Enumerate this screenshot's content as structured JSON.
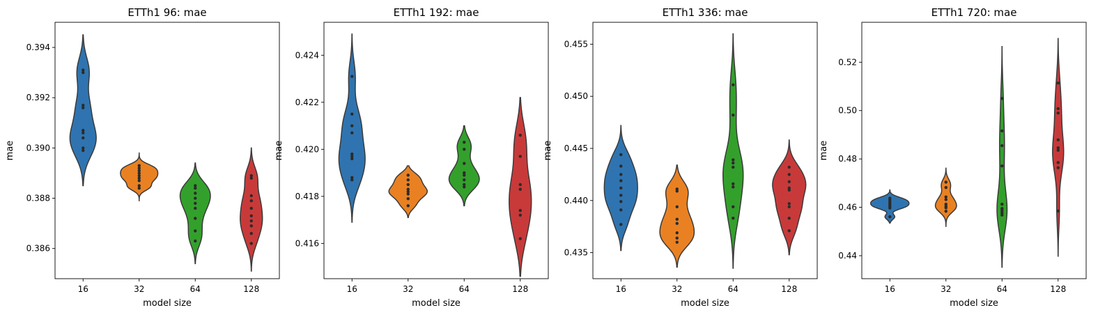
{
  "colors": {
    "16": "#2f74b0",
    "32": "#e98123",
    "64": "#33a02c",
    "128": "#c83a3a",
    "outline": "#3a3a3a",
    "dots": "#2b2b2b"
  },
  "chart_data": [
    {
      "type": "violin",
      "title": "ETTh1 96: mae",
      "xlabel": "model size",
      "ylabel": "mae",
      "categories": [
        "16",
        "32",
        "64",
        "128"
      ],
      "ylim": [
        0.3848,
        0.395
      ],
      "yticks": [
        0.386,
        0.388,
        0.39,
        0.392,
        0.394
      ],
      "ytick_labels": [
        "0.386",
        "0.388",
        "0.390",
        "0.392",
        "0.394"
      ],
      "series": [
        {
          "name": "16",
          "points": [
            0.3899,
            0.39,
            0.3904,
            0.3906,
            0.3907,
            0.3916,
            0.3917,
            0.393,
            0.3931
          ],
          "range": [
            0.3885,
            0.3945
          ],
          "width": 0.26
        },
        {
          "name": "32",
          "points": [
            0.3884,
            0.3885,
            0.3887,
            0.3888,
            0.3889,
            0.389,
            0.3891,
            0.3892,
            0.3893
          ],
          "range": [
            0.3879,
            0.3898
          ],
          "width": 0.37
        },
        {
          "name": "64",
          "points": [
            0.3863,
            0.3867,
            0.3872,
            0.3876,
            0.3878,
            0.388,
            0.3882,
            0.3884,
            0.3885
          ],
          "range": [
            0.3854,
            0.3894
          ],
          "width": 0.3
        },
        {
          "name": "128",
          "points": [
            0.3862,
            0.3866,
            0.3869,
            0.3871,
            0.3873,
            0.3876,
            0.3879,
            0.3881,
            0.3888,
            0.3889
          ],
          "range": [
            0.3851,
            0.39
          ],
          "width": 0.22
        }
      ]
    },
    {
      "type": "violin",
      "title": "ETTh1 192: mae",
      "xlabel": "model size",
      "ylabel": "mae",
      "categories": [
        "16",
        "32",
        "64",
        "128"
      ],
      "ylim": [
        0.4145,
        0.4254
      ],
      "yticks": [
        0.416,
        0.418,
        0.42,
        0.422,
        0.424
      ],
      "ytick_labels": [
        "0.416",
        "0.418",
        "0.420",
        "0.422",
        "0.424"
      ],
      "series": [
        {
          "name": "16",
          "points": [
            0.4187,
            0.4188,
            0.4196,
            0.4197,
            0.4198,
            0.4207,
            0.421,
            0.4215,
            0.4231
          ],
          "range": [
            0.4169,
            0.4249
          ],
          "width": 0.26
        },
        {
          "name": "32",
          "points": [
            0.4176,
            0.4179,
            0.4181,
            0.4182,
            0.4183,
            0.4185,
            0.4187,
            0.4189
          ],
          "range": [
            0.4171,
            0.4193
          ],
          "width": 0.38
        },
        {
          "name": "64",
          "points": [
            0.4184,
            0.4185,
            0.4187,
            0.4189,
            0.419,
            0.4194,
            0.42,
            0.4203
          ],
          "range": [
            0.4176,
            0.421
          ],
          "width": 0.3
        },
        {
          "name": "128",
          "points": [
            0.4162,
            0.4172,
            0.4174,
            0.4183,
            0.4185,
            0.4197,
            0.4206
          ],
          "range": [
            0.4146,
            0.4222
          ],
          "width": 0.22
        }
      ]
    },
    {
      "type": "violin",
      "title": "ETTh1 336: mae",
      "xlabel": "model size",
      "ylabel": "mae",
      "categories": [
        "16",
        "32",
        "64",
        "128"
      ],
      "ylim": [
        0.4325,
        0.4571
      ],
      "yticks": [
        0.435,
        0.44,
        0.445,
        0.45,
        0.455
      ],
      "ytick_labels": [
        "0.435",
        "0.440",
        "0.445",
        "0.450",
        "0.455"
      ],
      "series": [
        {
          "name": "16",
          "points": [
            0.4377,
            0.4391,
            0.4399,
            0.4405,
            0.4412,
            0.4419,
            0.4425,
            0.4433,
            0.4444
          ],
          "range": [
            0.4352,
            0.4472
          ],
          "width": 0.33
        },
        {
          "name": "32",
          "points": [
            0.436,
            0.4364,
            0.4369,
            0.4378,
            0.4382,
            0.4394,
            0.4409,
            0.4411
          ],
          "range": [
            0.4336,
            0.4434
          ],
          "width": 0.34
        },
        {
          "name": "64",
          "points": [
            0.4383,
            0.4394,
            0.4413,
            0.4416,
            0.4432,
            0.4436,
            0.4439,
            0.4482,
            0.4511
          ],
          "range": [
            0.4335,
            0.456
          ],
          "width": 0.2
        },
        {
          "name": "128",
          "points": [
            0.4371,
            0.4383,
            0.4394,
            0.4397,
            0.441,
            0.4412,
            0.4418,
            0.4425,
            0.4432
          ],
          "range": [
            0.4348,
            0.4458
          ],
          "width": 0.33
        }
      ]
    },
    {
      "type": "violin",
      "title": "ETTh1 720: mae",
      "xlabel": "model size",
      "ylabel": "mae",
      "categories": [
        "16",
        "32",
        "64",
        "128"
      ],
      "ylim": [
        0.4305,
        0.5365
      ],
      "yticks": [
        0.44,
        0.46,
        0.48,
        0.5,
        0.52
      ],
      "ytick_labels": [
        "0.44",
        "0.46",
        "0.48",
        "0.50",
        "0.52"
      ],
      "series": [
        {
          "name": "16",
          "points": [
            0.4561,
            0.4597,
            0.4603,
            0.461,
            0.4617,
            0.4624,
            0.4631,
            0.4638
          ],
          "range": [
            0.4535,
            0.4672
          ],
          "width": 0.38
        },
        {
          "name": "32",
          "points": [
            0.4584,
            0.4598,
            0.4604,
            0.4613,
            0.4632,
            0.4643,
            0.4682,
            0.4704
          ],
          "range": [
            0.4521,
            0.4762
          ],
          "width": 0.21
        },
        {
          "name": "64",
          "points": [
            0.4568,
            0.4577,
            0.4586,
            0.4595,
            0.4613,
            0.4771,
            0.4855,
            0.4916,
            0.505
          ],
          "range": [
            0.4352,
            0.5265
          ],
          "width": 0.1
        },
        {
          "name": "128",
          "points": [
            0.4585,
            0.4764,
            0.4785,
            0.4836,
            0.4846,
            0.4879,
            0.499,
            0.5008,
            0.5114
          ],
          "range": [
            0.4398,
            0.5298
          ],
          "width": 0.11
        }
      ]
    }
  ]
}
